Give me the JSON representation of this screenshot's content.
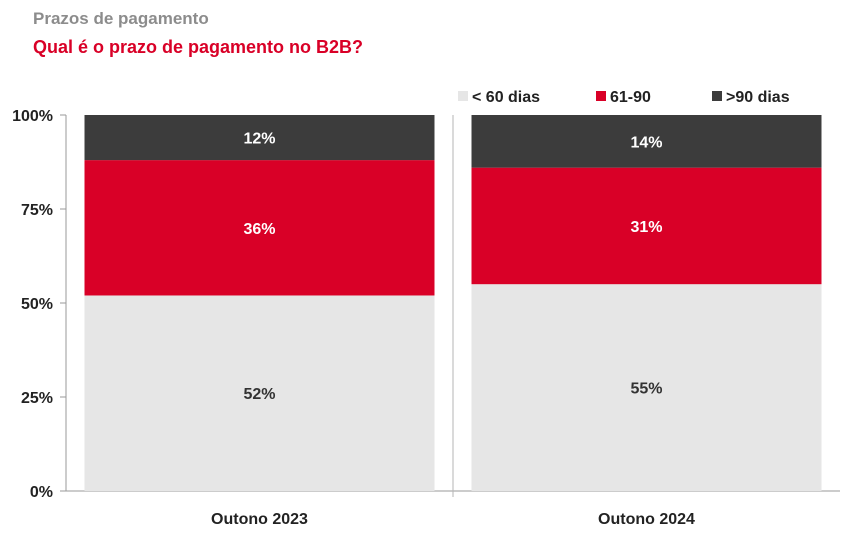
{
  "header": {
    "subtitle": "Prazos de pagamento",
    "title": "Qual é o prazo de pagamento no B2B?"
  },
  "chart_data": {
    "type": "bar",
    "stacked": true,
    "categories": [
      "Outono 2023",
      "Outono 2024"
    ],
    "series": [
      {
        "name": "< 60 dias",
        "values": [
          52,
          55
        ],
        "labels": [
          "52%",
          "55%"
        ],
        "color": "#e6e6e6",
        "label_color": "#333333"
      },
      {
        "name": "61-90",
        "values": [
          36,
          31
        ],
        "labels": [
          "36%",
          "31%"
        ],
        "color": "#d90027",
        "label_color": "#ffffff"
      },
      {
        "name": ">90 dias",
        "values": [
          12,
          14
        ],
        "labels": [
          "12%",
          "14%"
        ],
        "color": "#3c3c3c",
        "label_color": "#ffffff"
      }
    ],
    "ylim": [
      0,
      100
    ],
    "yticks": [
      0,
      25,
      50,
      75,
      100
    ],
    "ytick_labels": [
      "0%",
      "25%",
      "50%",
      "75%",
      "100%"
    ],
    "legend_position": "top-right",
    "grid": false
  }
}
